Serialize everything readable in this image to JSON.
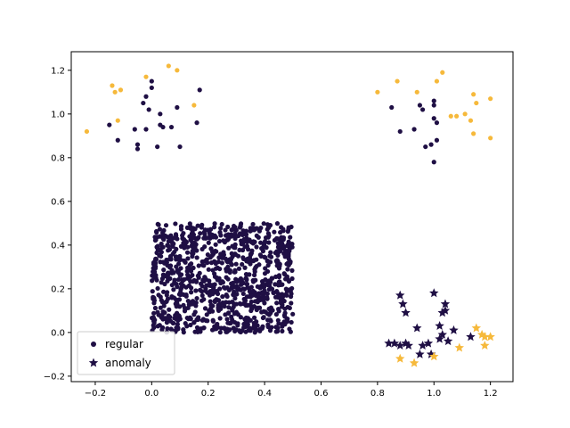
{
  "chart_data": {
    "type": "scatter",
    "xlim": [
      -0.285,
      1.28
    ],
    "ylim": [
      -0.225,
      1.285
    ],
    "xticks": [
      -0.2,
      0.0,
      0.2,
      0.4,
      0.6,
      0.8,
      1.0,
      1.2
    ],
    "yticks": [
      -0.2,
      0.0,
      0.2,
      0.4,
      0.6,
      0.8,
      1.0,
      1.2
    ],
    "x_tick_labels": [
      "−0.2",
      "0.0",
      "0.2",
      "0.4",
      "0.6",
      "0.8",
      "1.0",
      "1.2"
    ],
    "y_tick_labels": [
      "−0.2",
      "0.0",
      "0.2",
      "0.4",
      "0.6",
      "0.8",
      "1.0",
      "1.2"
    ],
    "grid": false,
    "legend_placement": "lower-left",
    "colors": {
      "dark": "#1f0f44",
      "orange": "#f6b93b"
    },
    "legend": [
      {
        "label": "regular",
        "marker": "circle"
      },
      {
        "label": "anomaly",
        "marker": "star"
      }
    ],
    "regular_block": {
      "description_range": {
        "x": [
          0.0,
          0.5
        ],
        "y": [
          0.0,
          0.5
        ]
      },
      "approx_count": 1000,
      "color": "#1f0f44"
    },
    "series": [
      {
        "name": "regular",
        "marker": "circle",
        "color_group": "dark",
        "points": [
          [
            -0.15,
            0.95
          ],
          [
            -0.12,
            0.88
          ],
          [
            -0.06,
            0.93
          ],
          [
            -0.05,
            0.84
          ],
          [
            -0.05,
            0.86
          ],
          [
            -0.03,
            1.05
          ],
          [
            -0.02,
            1.08
          ],
          [
            -0.01,
            1.02
          ],
          [
            -0.02,
            0.93
          ],
          [
            0.0,
            1.12
          ],
          [
            0.0,
            1.15
          ],
          [
            0.02,
            0.85
          ],
          [
            0.03,
            0.95
          ],
          [
            0.03,
            1.0
          ],
          [
            0.04,
            0.94
          ],
          [
            0.09,
            1.03
          ],
          [
            0.1,
            0.85
          ],
          [
            0.16,
            0.96
          ],
          [
            0.17,
            1.11
          ],
          [
            0.07,
            0.94
          ],
          [
            0.85,
            1.03
          ],
          [
            0.88,
            0.92
          ],
          [
            0.93,
            0.93
          ],
          [
            0.95,
            1.04
          ],
          [
            0.97,
            0.85
          ],
          [
            0.99,
            0.86
          ],
          [
            1.0,
            0.98
          ],
          [
            1.0,
            1.04
          ],
          [
            1.01,
            0.88
          ],
          [
            1.01,
            0.96
          ],
          [
            1.0,
            1.06
          ],
          [
            0.96,
            1.02
          ],
          [
            1.0,
            0.78
          ]
        ]
      },
      {
        "name": "regular",
        "marker": "circle",
        "color_group": "orange",
        "points": [
          [
            -0.23,
            0.92
          ],
          [
            -0.14,
            1.13
          ],
          [
            -0.13,
            1.1
          ],
          [
            -0.11,
            1.11
          ],
          [
            -0.12,
            0.97
          ],
          [
            -0.02,
            1.17
          ],
          [
            0.06,
            1.22
          ],
          [
            0.09,
            1.2
          ],
          [
            0.15,
            1.04
          ],
          [
            0.8,
            1.1
          ],
          [
            0.87,
            1.15
          ],
          [
            0.94,
            1.1
          ],
          [
            1.01,
            1.15
          ],
          [
            1.03,
            1.19
          ],
          [
            1.06,
            0.99
          ],
          [
            1.08,
            0.99
          ],
          [
            1.11,
            1.0
          ],
          [
            1.13,
            0.97
          ],
          [
            1.14,
            1.09
          ],
          [
            1.14,
            0.91
          ],
          [
            1.15,
            1.05
          ],
          [
            1.2,
            1.07
          ],
          [
            1.2,
            0.89
          ]
        ]
      },
      {
        "name": "anomaly",
        "marker": "star",
        "color_group": "dark",
        "points": [
          [
            0.84,
            -0.05
          ],
          [
            0.86,
            -0.05
          ],
          [
            0.88,
            -0.06
          ],
          [
            0.88,
            0.17
          ],
          [
            0.89,
            0.13
          ],
          [
            0.9,
            -0.05
          ],
          [
            0.91,
            -0.06
          ],
          [
            0.9,
            0.09
          ],
          [
            0.94,
            0.02
          ],
          [
            0.95,
            -0.1
          ],
          [
            0.96,
            -0.06
          ],
          [
            0.98,
            -0.05
          ],
          [
            0.99,
            -0.1
          ],
          [
            1.0,
            0.18
          ],
          [
            1.02,
            -0.03
          ],
          [
            1.02,
            0.03
          ],
          [
            1.03,
            0.09
          ],
          [
            1.03,
            -0.01
          ],
          [
            1.04,
            0.13
          ],
          [
            1.05,
            -0.04
          ],
          [
            1.04,
            0.1
          ],
          [
            1.07,
            0.01
          ],
          [
            1.13,
            -0.02
          ]
        ]
      },
      {
        "name": "anomaly",
        "marker": "star",
        "color_group": "orange",
        "points": [
          [
            0.88,
            -0.12
          ],
          [
            0.93,
            -0.14
          ],
          [
            1.0,
            -0.11
          ],
          [
            1.09,
            -0.07
          ],
          [
            1.15,
            0.02
          ],
          [
            1.17,
            -0.01
          ],
          [
            1.18,
            -0.02
          ],
          [
            1.18,
            -0.06
          ],
          [
            1.2,
            -0.02
          ]
        ]
      }
    ]
  }
}
